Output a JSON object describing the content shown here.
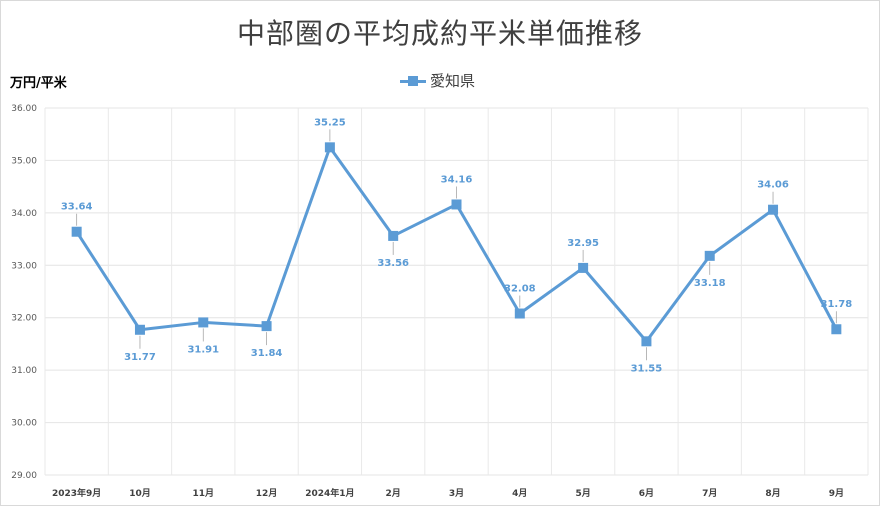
{
  "chart_data": {
    "type": "line",
    "title": "中部圏の平均成約平米単価推移",
    "ylabel": "万円/平米",
    "xlabel": "",
    "categories": [
      "2023年9月",
      "10月",
      "11月",
      "12月",
      "2024年1月",
      "2月",
      "3月",
      "4月",
      "5月",
      "6月",
      "7月",
      "8月",
      "9月"
    ],
    "series": [
      {
        "name": "愛知県",
        "values": [
          33.64,
          31.77,
          31.91,
          31.84,
          35.25,
          33.56,
          34.16,
          32.08,
          32.95,
          31.55,
          33.18,
          34.06,
          31.78
        ],
        "value_labels": [
          "33.64",
          "31.77",
          "31.91",
          "31.84",
          "35.25",
          "33.56",
          "34.16",
          "32.08",
          "32.95",
          "31.55",
          "33.18",
          "34.06",
          "31.78"
        ],
        "label_position": [
          "above",
          "below",
          "below",
          "below",
          "above",
          "below",
          "above",
          "above",
          "above",
          "below",
          "below",
          "above",
          "above"
        ],
        "color": "#5b9bd5"
      }
    ],
    "ylim": [
      29,
      36
    ],
    "yticks": [
      "29.00",
      "30.00",
      "31.00",
      "32.00",
      "33.00",
      "34.00",
      "35.00",
      "36.00"
    ],
    "grid": true,
    "legend": "top-center",
    "marker": "square"
  }
}
